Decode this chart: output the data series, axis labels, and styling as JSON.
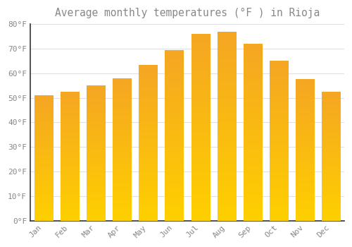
{
  "title": "Average monthly temperatures (°F ) in Rioja",
  "months": [
    "Jan",
    "Feb",
    "Mar",
    "Apr",
    "May",
    "Jun",
    "Jul",
    "Aug",
    "Sep",
    "Oct",
    "Nov",
    "Dec"
  ],
  "values": [
    51,
    52.5,
    55,
    58,
    63.5,
    69.5,
    76,
    77,
    72,
    65,
    57.5,
    52.5
  ],
  "bar_color_top": "#F5A623",
  "bar_color_bottom": "#FFD000",
  "background_color": "#FFFFFF",
  "grid_color": "#E0E0E0",
  "text_color": "#888888",
  "spine_color": "#333333",
  "ylim": [
    0,
    80
  ],
  "yticks": [
    0,
    10,
    20,
    30,
    40,
    50,
    60,
    70,
    80
  ],
  "ytick_labels": [
    "0°F",
    "10°F",
    "20°F",
    "30°F",
    "40°F",
    "50°F",
    "60°F",
    "70°F",
    "80°F"
  ],
  "title_fontsize": 10.5,
  "tick_fontsize": 8,
  "font_family": "monospace",
  "bar_width": 0.7
}
